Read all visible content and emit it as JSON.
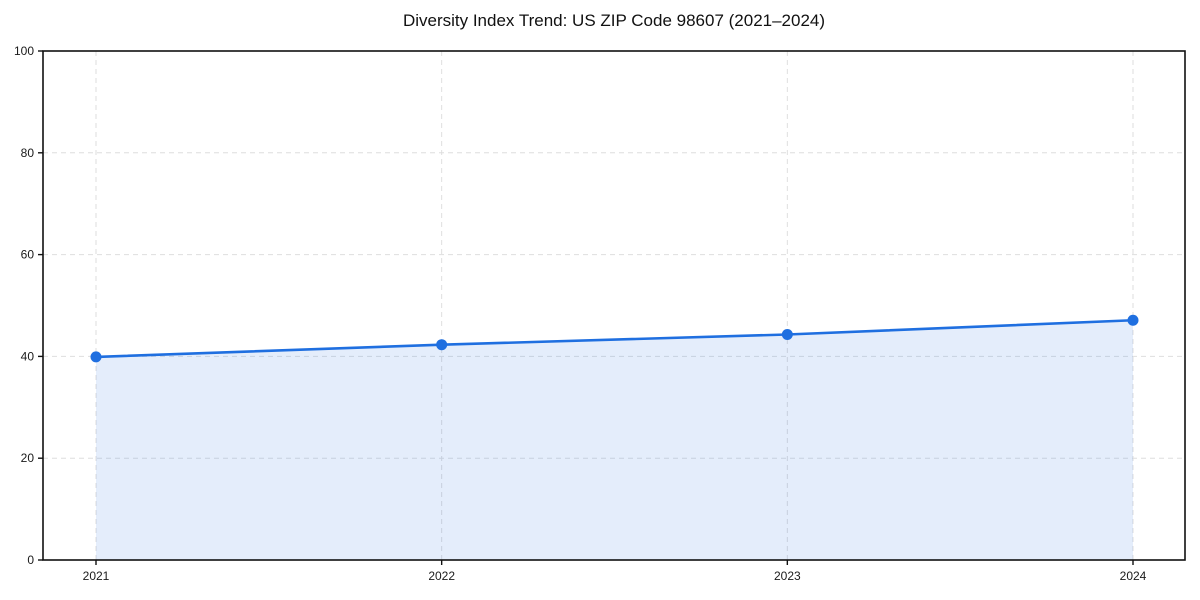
{
  "chart_data": {
    "type": "area",
    "title": "Diversity Index Trend: US ZIP Code 98607 (2021–2024)",
    "categories": [
      "2021",
      "2022",
      "2023",
      "2024"
    ],
    "x": [
      2021,
      2022,
      2023,
      2024
    ],
    "series": [
      {
        "name": "Diversity Index",
        "values": [
          39.9,
          42.3,
          44.3,
          47.1
        ]
      }
    ],
    "xlabel": "",
    "ylabel": "",
    "ylim": [
      0,
      100
    ],
    "yticks": [
      0,
      20,
      40,
      60,
      80,
      100
    ],
    "grid": "dashed-both-axes",
    "legend_position": "none",
    "colors": {
      "line": "#1f6fe0",
      "marker": "#1f6fe0",
      "fill": "rgba(31, 111, 224, 0.12)",
      "gridline": "#dedede",
      "axis": "#111111",
      "title_text": "#111111",
      "tick_text": "#1a1a1a",
      "background": "#ffffff"
    }
  }
}
